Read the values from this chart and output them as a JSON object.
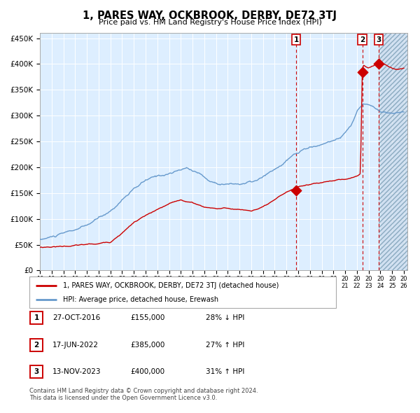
{
  "title": "1, PARES WAY, OCKBROOK, DERBY, DE72 3TJ",
  "subtitle": "Price paid vs. HM Land Registry's House Price Index (HPI)",
  "red_label": "1, PARES WAY, OCKBROOK, DERBY, DE72 3TJ (detached house)",
  "blue_label": "HPI: Average price, detached house, Erewash",
  "transactions": [
    {
      "num": 1,
      "date": "27-OCT-2016",
      "price": 155000,
      "pct": "28%",
      "dir": "↓",
      "sale_year": 2016.83
    },
    {
      "num": 2,
      "date": "17-JUN-2022",
      "price": 385000,
      "pct": "27%",
      "dir": "↑",
      "sale_year": 2022.46
    },
    {
      "num": 3,
      "date": "13-NOV-2023",
      "price": 400000,
      "pct": "31%",
      "dir": "↑",
      "sale_year": 2023.87
    }
  ],
  "ylim": [
    0,
    460000
  ],
  "yticks": [
    0,
    50000,
    100000,
    150000,
    200000,
    250000,
    300000,
    350000,
    400000,
    450000
  ],
  "ytick_labels": [
    "£0",
    "£50K",
    "£100K",
    "£150K",
    "£200K",
    "£250K",
    "£300K",
    "£350K",
    "£400K",
    "£450K"
  ],
  "xlim_start": 1995.3,
  "xlim_end": 2026.3,
  "xtick_years": [
    1995,
    1996,
    1997,
    1998,
    1999,
    2000,
    2001,
    2002,
    2003,
    2004,
    2005,
    2006,
    2007,
    2008,
    2009,
    2010,
    2011,
    2012,
    2013,
    2014,
    2015,
    2016,
    2017,
    2018,
    2019,
    2020,
    2021,
    2022,
    2023,
    2024,
    2025,
    2026
  ],
  "red_color": "#cc0000",
  "blue_color": "#6699cc",
  "plot_bg": "#ddeeff",
  "footer": "Contains HM Land Registry data © Crown copyright and database right 2024.\nThis data is licensed under the Open Government Licence v3.0."
}
